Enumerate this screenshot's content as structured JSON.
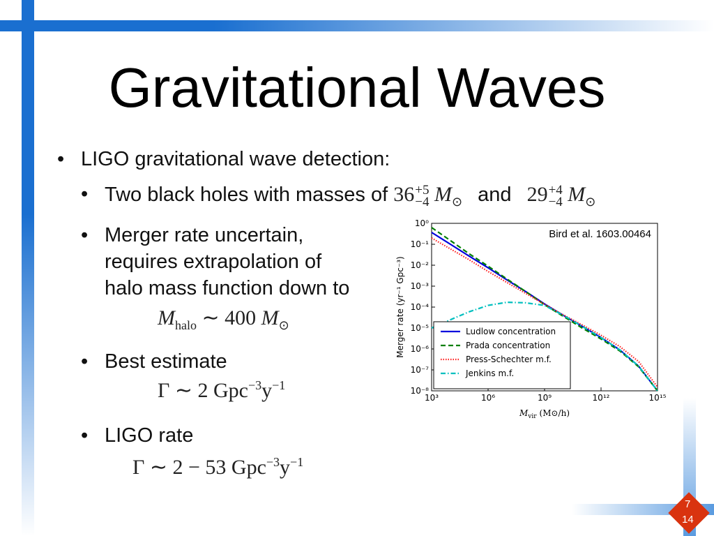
{
  "slide": {
    "title": "Gravitational Waves",
    "bullets": [
      {
        "text": "LIGO gravitational wave detection:"
      },
      {
        "text": "Two black holes with masses of",
        "mass1": {
          "base": "36",
          "sup": "+5",
          "sub": "−4",
          "unit": "M",
          "unit_sub": "⊙"
        },
        "joiner": "and",
        "mass2": {
          "base": "29",
          "sup": "+4",
          "sub": "−4",
          "unit": "M",
          "unit_sub": "⊙"
        }
      },
      {
        "lines": [
          "Merger rate uncertain,",
          "requires extrapolation of",
          "halo mass function down to"
        ],
        "formula": {
          "symbol": "M",
          "sub": "halo",
          "rest": "∼ 400",
          "unit": "M",
          "unit_sub": "⊙"
        }
      },
      {
        "text": "Best estimate",
        "formula": {
          "lhs": "Γ ∼ 2 Gpc",
          "exp1": "−3",
          "y": "y",
          "exp2": "−1"
        }
      },
      {
        "text": "LIGO rate",
        "formula": {
          "lhs": "Γ ∼ 2 − 53 Gpc",
          "exp1": "−3",
          "y": "y",
          "exp2": "−1"
        }
      }
    ],
    "page": "7",
    "total": "14"
  },
  "chart_data": {
    "type": "line",
    "log_x": true,
    "log_y": true,
    "annotation": "Bird et al. 1603.00464",
    "y_label": "Merger rate (yr⁻¹ Gpc⁻³)",
    "x_label": {
      "symbol": "M",
      "sub": "vir",
      "rest": "(M⊙/h)"
    },
    "x": [
      1000,
      10000,
      100000,
      1000000,
      10000000,
      100000000,
      1000000000,
      10000000000,
      100000000000,
      1000000000000,
      10000000000000,
      100000000000000,
      1000000000000000
    ],
    "series": [
      {
        "name": "Ludlow concentration",
        "color": "#0000dd",
        "linestyle": "solid",
        "values": [
          0.37,
          0.1,
          0.027,
          0.0075,
          0.002,
          0.00055,
          0.00014,
          4e-05,
          1.2e-05,
          3.5e-06,
          9e-07,
          1.5e-07,
          1e-08
        ]
      },
      {
        "name": "Prada concentration",
        "color": "#007f00",
        "linestyle": "dashed",
        "values": [
          0.63,
          0.15,
          0.035,
          0.009,
          0.0022,
          0.00055,
          0.00013,
          3.6e-05,
          1e-05,
          3e-06,
          8e-07,
          1.4e-07,
          1e-08
        ]
      },
      {
        "name": "Press-Schechter m.f.",
        "color": "#ff2020",
        "linestyle": "dotted",
        "values": [
          0.2,
          0.06,
          0.018,
          0.005,
          0.0015,
          0.00045,
          0.000135,
          4.2e-05,
          1.4e-05,
          4.5e-06,
          1.3e-06,
          2.5e-07,
          1.5e-08
        ]
      },
      {
        "name": "Jenkins m.f.",
        "color": "#00bfbf",
        "linestyle": "dashdot",
        "values": [
          1e-05,
          2.5e-05,
          6e-05,
          0.00012,
          0.00017,
          0.00016,
          0.00012,
          4e-05,
          1.2e-05,
          3.5e-06,
          9e-07,
          1.5e-07,
          1e-08
        ]
      }
    ],
    "xlim": [
      1000,
      1000000000000000
    ],
    "xticks": [
      {
        "value": 1000,
        "label": "10³"
      },
      {
        "value": 1000000,
        "label": "10⁶"
      },
      {
        "value": 1000000000,
        "label": "10⁹"
      },
      {
        "value": 1000000000000,
        "label": "10¹²"
      },
      {
        "value": 1000000000000000,
        "label": "10¹⁵"
      }
    ],
    "ylim": [
      1e-08,
      1
    ],
    "yticks": [
      {
        "value": 1e-08,
        "label": "10⁻⁸"
      },
      {
        "value": 1e-07,
        "label": "10⁻⁷"
      },
      {
        "value": 1e-06,
        "label": "10⁻⁶"
      },
      {
        "value": 1e-05,
        "label": "10⁻⁵"
      },
      {
        "value": 0.0001,
        "label": "10⁻⁴"
      },
      {
        "value": 0.001,
        "label": "10⁻³"
      },
      {
        "value": 0.01,
        "label": "10⁻²"
      },
      {
        "value": 0.1,
        "label": "10⁻¹"
      },
      {
        "value": 1,
        "label": "10⁰"
      }
    ],
    "legend": "lower left"
  }
}
